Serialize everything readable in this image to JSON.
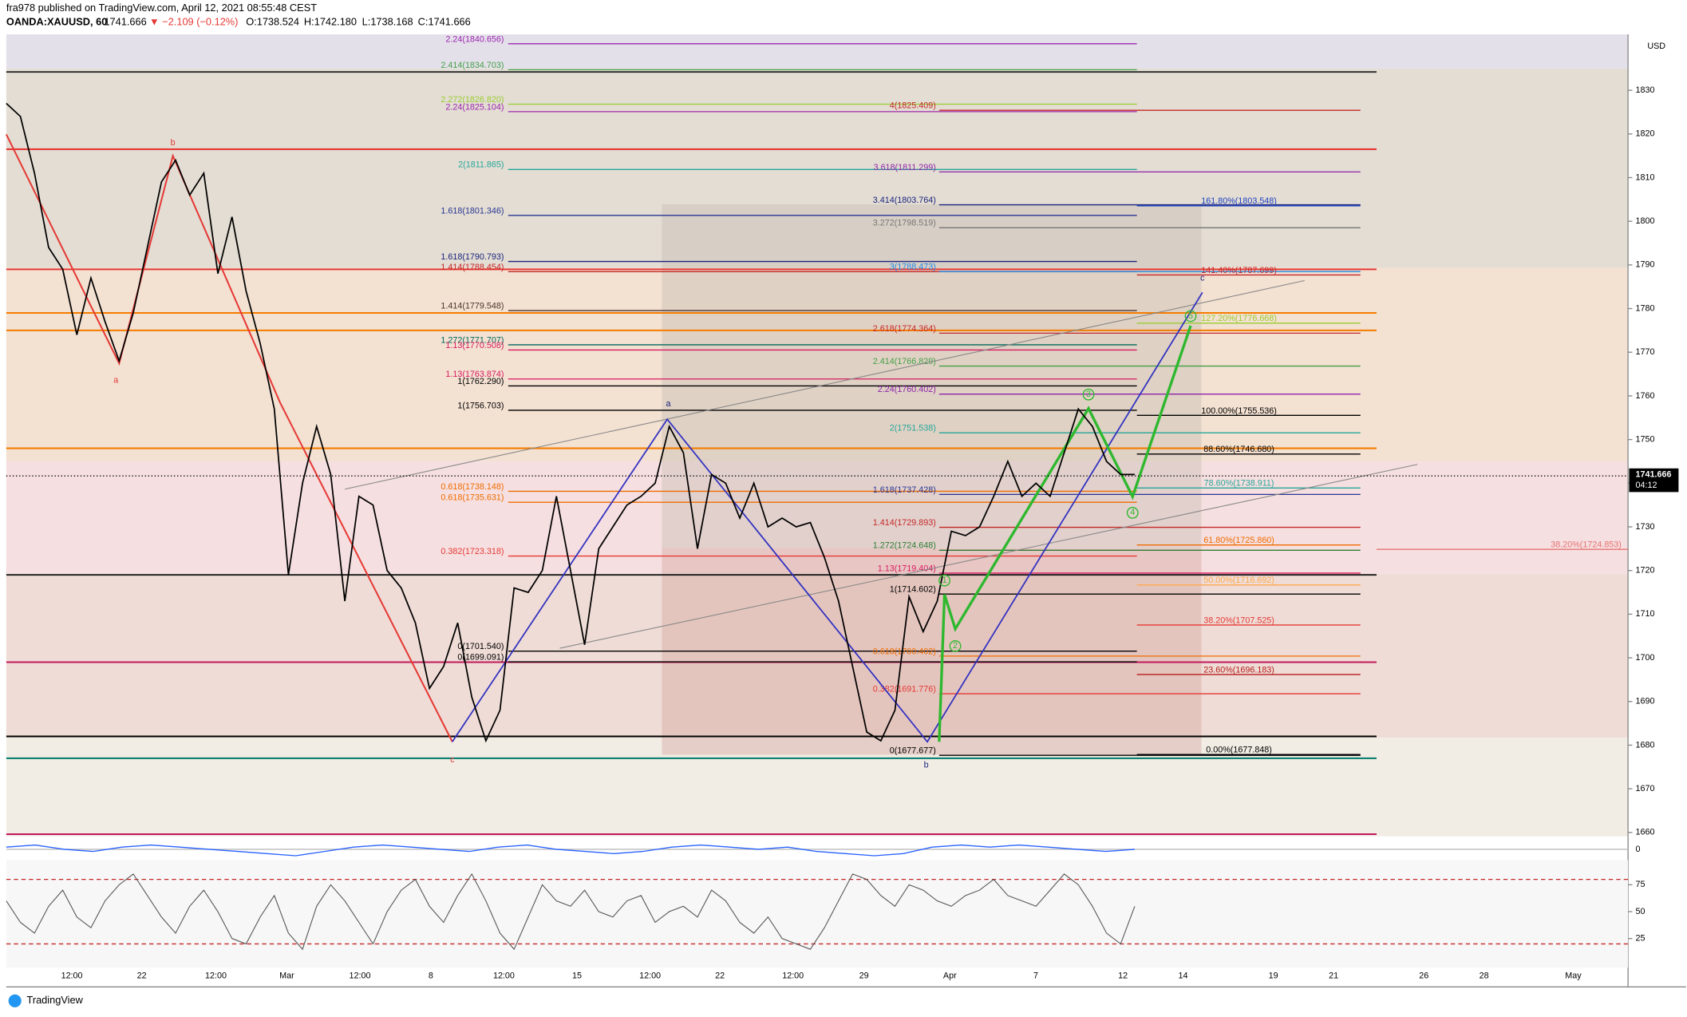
{
  "header": {
    "publisher": "fra978 published on TradingView.com, April 12, 2021 08:55:48 CEST",
    "symbol": "OANDA:XAUUSD, 60",
    "last": "1741.666",
    "change": "▼ −2.109 (−0.12%)",
    "open": "O:1738.524",
    "high": "H:1742.180",
    "low": "L:1738.168",
    "close": "C:1741.666"
  },
  "footer": "TradingView",
  "chart_data": {
    "type": "line",
    "currency": "USD",
    "color": "#000000",
    "price_tag": "1741.666",
    "countdown": "04:12",
    "last_price": 1741.666,
    "ylim": [
      1659.1,
      1842.8
    ],
    "yticks": [
      1660,
      1670,
      1680,
      1690,
      1700,
      1710,
      1720,
      1730,
      1740,
      1750,
      1760,
      1770,
      1780,
      1790,
      1800,
      1810,
      1820,
      1830
    ],
    "time_labels": [
      "12:00",
      "22",
      "12:00",
      "Mar",
      "12:00",
      "8",
      "12:00",
      "15",
      "12:00",
      "22",
      "12:00",
      "29",
      "Apr",
      "7",
      "12",
      "14",
      "19",
      "21",
      "26",
      "28",
      "May"
    ],
    "values": [
      1827,
      1824,
      1811,
      1794,
      1789,
      1774,
      1787,
      1777,
      1768,
      1779,
      1794,
      1809,
      1814,
      1806,
      1811,
      1788,
      1801,
      1784,
      1772,
      1757,
      1719,
      1740,
      1753,
      1742,
      1713,
      1737,
      1735,
      1720,
      1716,
      1708,
      1693,
      1698,
      1708,
      1691,
      1681,
      1688,
      1716,
      1715,
      1720,
      1737,
      1720,
      1703,
      1725,
      1730,
      1735,
      1737,
      1740,
      1753,
      1747,
      1725,
      1742,
      1740,
      1732,
      1740,
      1730,
      1732,
      1730,
      1731,
      1723,
      1713,
      1698,
      1683,
      1681,
      1688,
      1714,
      1706,
      1713,
      1729,
      1728,
      1730,
      1737,
      1745,
      1737,
      1740,
      1737,
      1747,
      1757,
      1753,
      1745,
      1742,
      1742
    ],
    "horizontal_lines": [
      {
        "value": 1834.2,
        "color": "#333333"
      },
      {
        "value": 1816.5,
        "color": "#e53935"
      },
      {
        "value": 1789,
        "color": "#e53935"
      },
      {
        "value": 1779,
        "color": "#f57c00"
      },
      {
        "value": 1775,
        "color": "#f57c00"
      },
      {
        "value": 1748,
        "color": "#f57c00"
      },
      {
        "value": 1719,
        "color": "#222222"
      },
      {
        "value": 1699,
        "color": "#c2185b"
      },
      {
        "value": 1682,
        "color": "#000000"
      },
      {
        "value": 1677,
        "color": "#00796b"
      },
      {
        "value": 1659.6,
        "color": "#c2185b"
      }
    ],
    "fib_left": [
      {
        "label": "2.24(1840.656)",
        "value": 1840.656,
        "color": "#9c27b0"
      },
      {
        "label": "2.414(1834.703)",
        "value": 1834.703,
        "color": "#43a047"
      },
      {
        "label": "2.272(1826.820)",
        "value": 1826.82,
        "color": "#9acd32"
      },
      {
        "label": "2.24(1825.104)",
        "value": 1825.104,
        "color": "#9c27b0"
      },
      {
        "label": "2(1811.865)",
        "value": 1811.865,
        "color": "#26a69a"
      },
      {
        "label": "1.618(1801.346)",
        "value": 1801.346,
        "color": "#283593"
      },
      {
        "label": "1.618(1790.793)",
        "value": 1790.793,
        "color": "#1a237e"
      },
      {
        "label": "1.414(1788.454)",
        "value": 1788.454,
        "color": "#c62828"
      },
      {
        "label": "1.414(1779.548)",
        "value": 1779.548,
        "color": "#4e342e"
      },
      {
        "label": "1.272(1771.707)",
        "value": 1771.707,
        "color": "#00695c"
      },
      {
        "label": "1.13(1770.508)",
        "value": 1770.508,
        "color": "#d81b60"
      },
      {
        "label": "1.13(1763.874)",
        "value": 1763.874,
        "color": "#d81b60"
      },
      {
        "label": "1(1762.290)",
        "value": 1762.29,
        "color": "#000000"
      },
      {
        "label": "1(1756.703)",
        "value": 1756.703,
        "color": "#000000"
      },
      {
        "label": "0.618(1738.148)",
        "value": 1738.148,
        "color": "#ef6c00"
      },
      {
        "label": "0.618(1735.631)",
        "value": 1735.631,
        "color": "#ef6c00"
      },
      {
        "label": "0.382(1723.318)",
        "value": 1723.318,
        "color": "#e53935"
      },
      {
        "label": "0(1701.540)",
        "value": 1701.54,
        "color": "#000000"
      },
      {
        "label": "0(1699.091)",
        "value": 1699.091,
        "color": "#000000"
      }
    ],
    "fib_middle": [
      {
        "label": "4(1825.409)",
        "value": 1825.409,
        "color": "#c62828"
      },
      {
        "label": "3.618(1811.299)",
        "value": 1811.299,
        "color": "#8e24aa"
      },
      {
        "label": "3.414(1803.764)",
        "value": 1803.764,
        "color": "#1a237e"
      },
      {
        "label": "3.272(1798.519)",
        "value": 1798.519,
        "color": "#757575"
      },
      {
        "label": "3(1788.473)",
        "value": 1788.473,
        "color": "#1e88e5"
      },
      {
        "label": "2.618(1774.364)",
        "value": 1774.364,
        "color": "#c62828"
      },
      {
        "label": "2.414(1766.829)",
        "value": 1766.829,
        "color": "#43a047"
      },
      {
        "label": "2.24(1760.402)",
        "value": 1760.402,
        "color": "#8e24aa"
      },
      {
        "label": "2(1751.538)",
        "value": 1751.538,
        "color": "#26a69a"
      },
      {
        "label": "1.618(1737.428)",
        "value": 1737.428,
        "color": "#283593"
      },
      {
        "label": "1.414(1729.893)",
        "value": 1729.893,
        "color": "#c62828"
      },
      {
        "label": "1.272(1724.648)",
        "value": 1724.648,
        "color": "#2e7d32"
      },
      {
        "label": "1.13(1719.404)",
        "value": 1719.404,
        "color": "#d81b60"
      },
      {
        "label": "1(1714.602)",
        "value": 1714.602,
        "color": "#000000"
      },
      {
        "label": "0.618(1700.402)",
        "value": 1700.402,
        "color": "#ef6c00"
      },
      {
        "label": "0.382(1691.776)",
        "value": 1691.776,
        "color": "#e53935"
      },
      {
        "label": "0(1677.677)",
        "value": 1677.677,
        "color": "#000000"
      }
    ],
    "fib_right": [
      {
        "label": "161.80%(1803.548)",
        "value": 1803.548,
        "color": "#1e40c0"
      },
      {
        "label": "141.40%(1787.699)",
        "value": 1787.699,
        "color": "#c62828"
      },
      {
        "label": "127.20%(1776.668)",
        "value": 1776.668,
        "color": "#9acd32"
      },
      {
        "label": "100.00%(1755.536)",
        "value": 1755.536,
        "color": "#000000"
      },
      {
        "label": "88.60%(1746.680)",
        "value": 1746.68,
        "color": "#000000"
      },
      {
        "label": "78.60%(1738.911)",
        "value": 1738.911,
        "color": "#26a69a"
      },
      {
        "label": "61.80%(1725.860)",
        "value": 1725.86,
        "color": "#ef6c00"
      },
      {
        "label": "50.00%(1716.692)",
        "value": 1716.692,
        "color": "#ffa94d"
      },
      {
        "label": "38.20%(1707.525)",
        "value": 1707.525,
        "color": "#e53935"
      },
      {
        "label": "23.60%(1696.183)",
        "value": 1696.183,
        "color": "#b71c1c"
      },
      {
        "label": "0.00%(1677.848)",
        "value": 1677.848,
        "color": "#000000"
      },
      {
        "label": "38.20%(1724.853)",
        "value": 1724.853,
        "color": "#e57373"
      }
    ],
    "wave_labels": [
      "a",
      "b",
      "c",
      "a",
      "b",
      "c",
      "1",
      "2",
      "3",
      "4",
      "5"
    ],
    "macd": {
      "ylim": [
        -5,
        5
      ],
      "yticks": [
        0
      ],
      "values": [
        1,
        2,
        0,
        -1,
        1,
        2,
        1,
        0,
        -1,
        -2,
        -3,
        -1,
        1,
        2,
        1,
        0,
        -1,
        1,
        2,
        0,
        -1,
        -2,
        -1,
        1,
        2,
        1,
        0,
        1,
        -1,
        -2,
        -3,
        -2,
        1,
        2,
        1,
        2,
        1,
        0,
        -1,
        0
      ]
    },
    "rsi": {
      "ylim": [
        0,
        100
      ],
      "yticks": [
        25,
        50,
        75
      ],
      "bands": [
        80,
        20
      ],
      "values": [
        60,
        40,
        30,
        55,
        70,
        45,
        35,
        60,
        75,
        85,
        65,
        45,
        30,
        55,
        70,
        50,
        25,
        20,
        45,
        65,
        30,
        15,
        55,
        75,
        60,
        40,
        20,
        50,
        70,
        80,
        55,
        40,
        65,
        85,
        60,
        30,
        15,
        45,
        75,
        60,
        55,
        70,
        50,
        45,
        60,
        65,
        40,
        50,
        55,
        45,
        70,
        60,
        40,
        30,
        45,
        25,
        20,
        15,
        35,
        60,
        85,
        80,
        65,
        55,
        75,
        70,
        60,
        55,
        65,
        70,
        80,
        65,
        60,
        55,
        70,
        85,
        75,
        55,
        30,
        20,
        55
      ]
    }
  }
}
